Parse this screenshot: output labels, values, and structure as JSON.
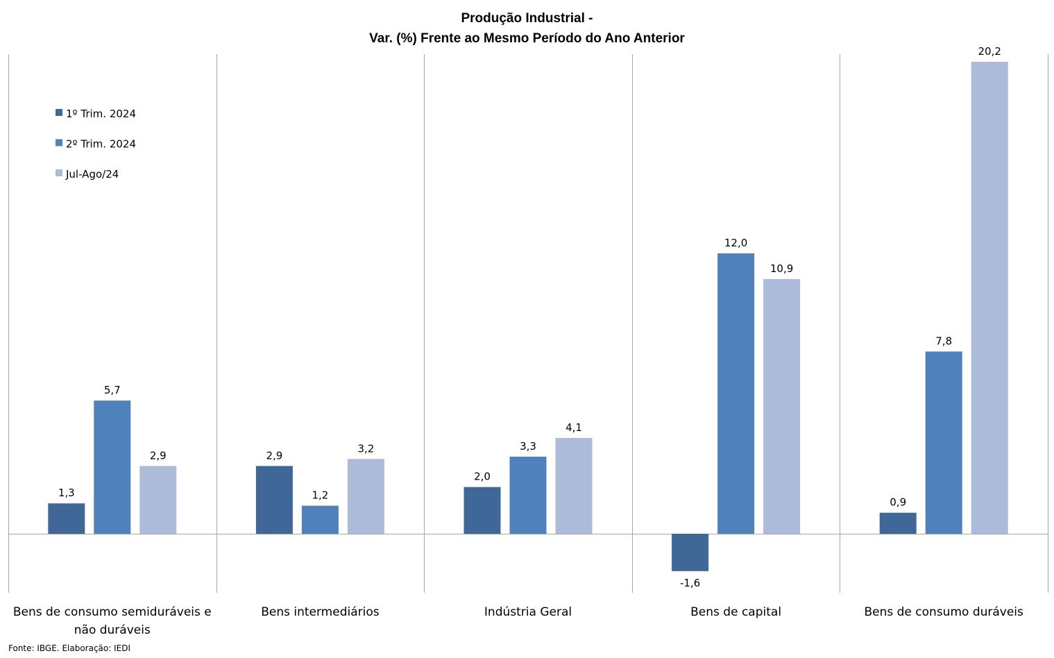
{
  "chart_data": {
    "type": "bar",
    "title_lines": [
      "Produção Industrial -",
      "Var. (%)  Frente ao Mesmo Período do Ano Anterior"
    ],
    "categories": [
      [
        "Bens de consumo semiduráveis e",
        "não duráveis"
      ],
      [
        "Bens intermediários"
      ],
      [
        "Indústria Geral"
      ],
      [
        "Bens de capital"
      ],
      [
        "Bens de consumo duráveis"
      ]
    ],
    "series": [
      {
        "name": "1º Trim. 2024",
        "color": "#3f6899",
        "values": [
          1.3,
          2.9,
          2.0,
          -1.6,
          0.9
        ]
      },
      {
        "name": "2º Trim. 2024",
        "color": "#4f81bd",
        "values": [
          5.7,
          1.2,
          3.3,
          12.0,
          7.8
        ]
      },
      {
        "name": "Jul-Ago/24",
        "color": "#abbbd9",
        "values": [
          2.9,
          3.2,
          4.1,
          10.9,
          20.2
        ]
      }
    ],
    "data_labels": [
      [
        "1,3",
        "2,9",
        "2,0",
        "-1,6",
        "0,9"
      ],
      [
        "5,7",
        "1,2",
        "3,3",
        "12,0",
        "7,8"
      ],
      [
        "2,9",
        "3,2",
        "4,1",
        "10,9",
        "20,2"
      ]
    ],
    "ylim": [
      -2.5,
      20.5
    ],
    "grid": "vertical category separators",
    "legend_position": "top-left",
    "source": "Fonte: IBGE. Elaboração: IEDI"
  }
}
